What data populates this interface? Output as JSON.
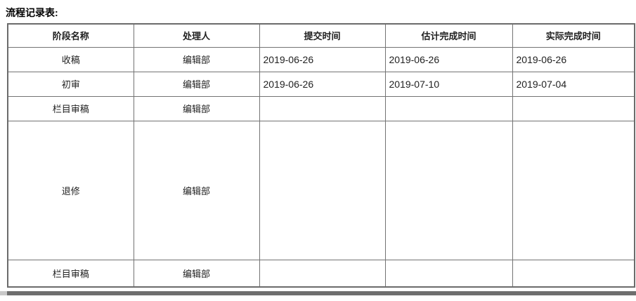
{
  "page": {
    "title": "流程记录表:"
  },
  "table": {
    "headers": [
      "阶段名称",
      "处理人",
      "提交时间",
      "估计完成时间",
      "实际完成时间"
    ],
    "rows": [
      {
        "stage": "收稿",
        "handler": "编辑部",
        "submit": "2019-06-26",
        "estimated": "2019-06-26",
        "actual": "2019-06-26"
      },
      {
        "stage": "初审",
        "handler": "编辑部",
        "submit": "2019-06-26",
        "estimated": "2019-07-10",
        "actual": "2019-07-04"
      },
      {
        "stage": "栏目审稿",
        "handler": "编辑部",
        "submit": "",
        "estimated": "",
        "actual": ""
      },
      {
        "stage": "退修",
        "handler": "编辑部",
        "submit": "",
        "estimated": "",
        "actual": ""
      },
      {
        "stage": "栏目审稿",
        "handler": "编辑部",
        "submit": "",
        "estimated": "",
        "actual": ""
      }
    ]
  },
  "colors": {
    "border_outer": "#6b6b6b",
    "border_inner": "#737373",
    "text": "#1f1f1f",
    "scrollbar_thumb": "#6e6e6e",
    "scrollbar_track": "#c9c9c9",
    "background": "#ffffff"
  }
}
